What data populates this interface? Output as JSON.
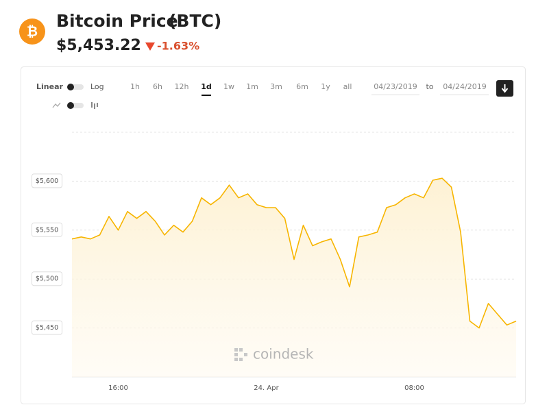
{
  "header": {
    "title": "Bitcoin Price",
    "ticker": "(BTC)",
    "price": "$5,453.22",
    "change": "-1.63%"
  },
  "controls": {
    "scale_linear": "Linear",
    "scale_log": "Log",
    "ranges": [
      "1h",
      "6h",
      "12h",
      "1d",
      "1w",
      "1m",
      "3m",
      "6m",
      "1y",
      "all"
    ],
    "active_range": "1d",
    "date_from": "04/23/2019",
    "date_to_label": "to",
    "date_to": "04/24/2019"
  },
  "watermark": "coindesk",
  "chart_data": {
    "type": "line",
    "categories": [
      null,
      null,
      null,
      null,
      null,
      "16:00",
      null,
      null,
      null,
      null,
      null,
      null,
      null,
      null,
      null,
      null,
      null,
      null,
      null,
      null,
      null,
      "24. Apr",
      null,
      null,
      null,
      null,
      null,
      null,
      null,
      null,
      null,
      null,
      null,
      null,
      null,
      null,
      null,
      "08:00",
      null,
      null,
      null,
      null,
      null,
      null,
      null,
      null,
      null,
      null,
      null
    ],
    "values": [
      5541,
      5543,
      5541,
      5545,
      5564,
      5550,
      5569,
      5562,
      5569,
      5559,
      5545,
      5555,
      5548,
      5559,
      5583,
      5576,
      5583,
      5596,
      5583,
      5587,
      5576,
      5573,
      5573,
      5562,
      5520,
      5555,
      5534,
      5538,
      5541,
      5520,
      5492,
      5543,
      5545,
      5548,
      5573,
      5576,
      5583,
      5587,
      5583,
      5601,
      5603,
      5594,
      5548,
      5457,
      5450,
      5475,
      5464,
      5453,
      5457
    ],
    "color": "#f7b500",
    "ylim": [
      5400,
      5650
    ],
    "yticks": [
      {
        "value": 5450,
        "label": "$5,450"
      },
      {
        "value": 5500,
        "label": "$5,500"
      },
      {
        "value": 5550,
        "label": "$5,550"
      },
      {
        "value": 5600,
        "label": "$5,600"
      }
    ],
    "grid": true
  }
}
